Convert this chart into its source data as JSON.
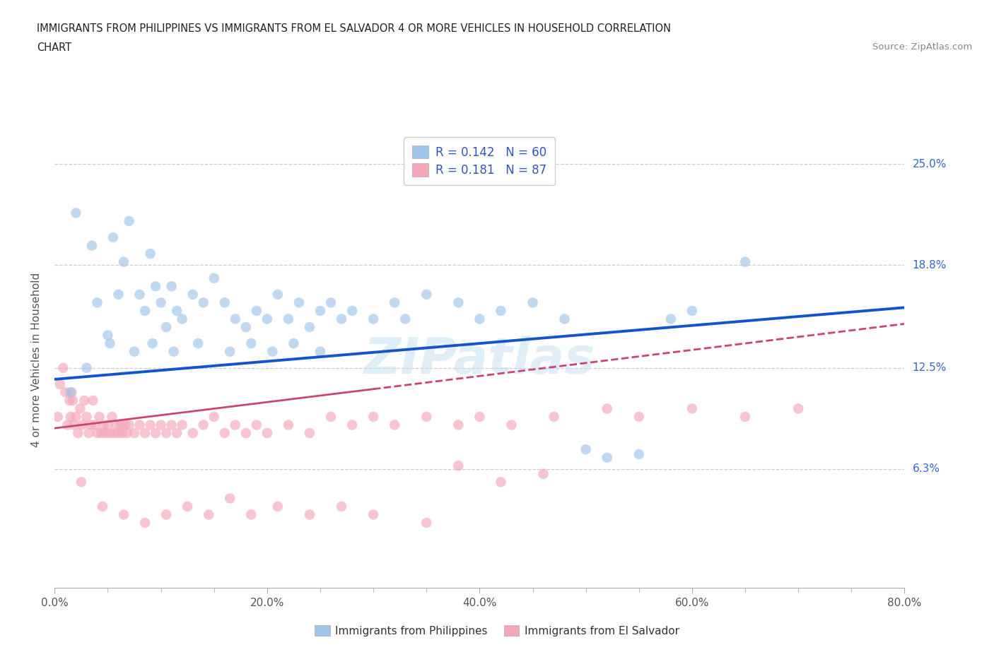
{
  "title_line1": "IMMIGRANTS FROM PHILIPPINES VS IMMIGRANTS FROM EL SALVADOR 4 OR MORE VEHICLES IN HOUSEHOLD CORRELATION",
  "title_line2": "CHART",
  "source_text": "Source: ZipAtlas.com",
  "xlabel_ticks": [
    "0.0%",
    "20.0%",
    "40.0%",
    "60.0%",
    "80.0%"
  ],
  "xlabel_vals": [
    0.0,
    20.0,
    40.0,
    60.0,
    80.0
  ],
  "ylabel_ticks": [
    "6.3%",
    "12.5%",
    "18.8%",
    "25.0%"
  ],
  "ylabel_vals": [
    6.3,
    12.5,
    18.8,
    25.0
  ],
  "xlim": [
    0.0,
    80.0
  ],
  "ylim": [
    -1.0,
    27.0
  ],
  "r_philippines": 0.142,
  "n_philippines": 60,
  "r_elsalvador": 0.181,
  "n_elsalvador": 87,
  "color_philippines": "#9FC5E8",
  "color_elsalvador": "#F4A7B9",
  "color_trendline_philippines": "#1155CC",
  "color_trendline_elsalvador": "#CC4477",
  "watermark_text": "ZIPatlas",
  "trendline_ph_x0": 0.0,
  "trendline_ph_y0": 11.8,
  "trendline_ph_x1": 80.0,
  "trendline_ph_y1": 16.2,
  "trendline_es_solid_x0": 0.0,
  "trendline_es_solid_y0": 8.8,
  "trendline_es_solid_x1": 30.0,
  "trendline_es_solid_y1": 11.2,
  "trendline_es_dash_x0": 30.0,
  "trendline_es_dash_y0": 11.2,
  "trendline_es_dash_x1": 80.0,
  "trendline_es_dash_y1": 15.2,
  "philippines_x": [
    2.0,
    3.5,
    4.0,
    5.0,
    5.5,
    6.0,
    6.5,
    7.0,
    8.0,
    8.5,
    9.0,
    9.5,
    10.0,
    10.5,
    11.0,
    11.5,
    12.0,
    13.0,
    14.0,
    15.0,
    16.0,
    17.0,
    18.0,
    19.0,
    20.0,
    21.0,
    22.0,
    23.0,
    24.0,
    25.0,
    26.0,
    27.0,
    28.0,
    30.0,
    32.0,
    33.0,
    35.0,
    38.0,
    40.0,
    42.0,
    45.0,
    48.0,
    50.0,
    52.0,
    55.0,
    58.0,
    60.0,
    65.0,
    1.5,
    3.0,
    5.2,
    7.5,
    9.2,
    11.2,
    13.5,
    16.5,
    18.5,
    20.5,
    22.5,
    25.0
  ],
  "philippines_y": [
    22.0,
    20.0,
    16.5,
    14.5,
    20.5,
    17.0,
    19.0,
    21.5,
    17.0,
    16.0,
    19.5,
    17.5,
    16.5,
    15.0,
    17.5,
    16.0,
    15.5,
    17.0,
    16.5,
    18.0,
    16.5,
    15.5,
    15.0,
    16.0,
    15.5,
    17.0,
    15.5,
    16.5,
    15.0,
    16.0,
    16.5,
    15.5,
    16.0,
    15.5,
    16.5,
    15.5,
    17.0,
    16.5,
    15.5,
    16.0,
    16.5,
    15.5,
    7.5,
    7.0,
    7.2,
    15.5,
    16.0,
    19.0,
    11.0,
    12.5,
    14.0,
    13.5,
    14.0,
    13.5,
    14.0,
    13.5,
    14.0,
    13.5,
    14.0,
    13.5
  ],
  "elsalvador_x": [
    0.3,
    0.5,
    0.8,
    1.0,
    1.2,
    1.4,
    1.5,
    1.6,
    1.7,
    1.8,
    2.0,
    2.2,
    2.4,
    2.6,
    2.8,
    3.0,
    3.2,
    3.4,
    3.6,
    3.8,
    4.0,
    4.2,
    4.4,
    4.6,
    4.8,
    5.0,
    5.2,
    5.4,
    5.6,
    5.8,
    6.0,
    6.2,
    6.4,
    6.6,
    6.8,
    7.0,
    7.5,
    8.0,
    8.5,
    9.0,
    9.5,
    10.0,
    10.5,
    11.0,
    11.5,
    12.0,
    13.0,
    14.0,
    15.0,
    16.0,
    17.0,
    18.0,
    19.0,
    20.0,
    22.0,
    24.0,
    26.0,
    28.0,
    30.0,
    32.0,
    35.0,
    38.0,
    40.0,
    43.0,
    47.0,
    52.0,
    55.0,
    60.0,
    65.0,
    70.0,
    2.5,
    4.5,
    6.5,
    8.5,
    10.5,
    12.5,
    14.5,
    16.5,
    18.5,
    21.0,
    24.0,
    27.0,
    30.0,
    35.0,
    38.0,
    42.0,
    46.0
  ],
  "elsalvador_y": [
    9.5,
    11.5,
    12.5,
    11.0,
    9.0,
    10.5,
    9.5,
    11.0,
    10.5,
    9.0,
    9.5,
    8.5,
    10.0,
    9.0,
    10.5,
    9.5,
    8.5,
    9.0,
    10.5,
    9.0,
    8.5,
    9.5,
    8.5,
    9.0,
    8.5,
    9.0,
    8.5,
    9.5,
    8.5,
    9.0,
    8.5,
    9.0,
    8.5,
    9.0,
    8.5,
    9.0,
    8.5,
    9.0,
    8.5,
    9.0,
    8.5,
    9.0,
    8.5,
    9.0,
    8.5,
    9.0,
    8.5,
    9.0,
    9.5,
    8.5,
    9.0,
    8.5,
    9.0,
    8.5,
    9.0,
    8.5,
    9.5,
    9.0,
    9.5,
    9.0,
    9.5,
    9.0,
    9.5,
    9.0,
    9.5,
    10.0,
    9.5,
    10.0,
    9.5,
    10.0,
    5.5,
    4.0,
    3.5,
    3.0,
    3.5,
    4.0,
    3.5,
    4.5,
    3.5,
    4.0,
    3.5,
    4.0,
    3.5,
    3.0,
    6.5,
    5.5,
    6.0
  ]
}
